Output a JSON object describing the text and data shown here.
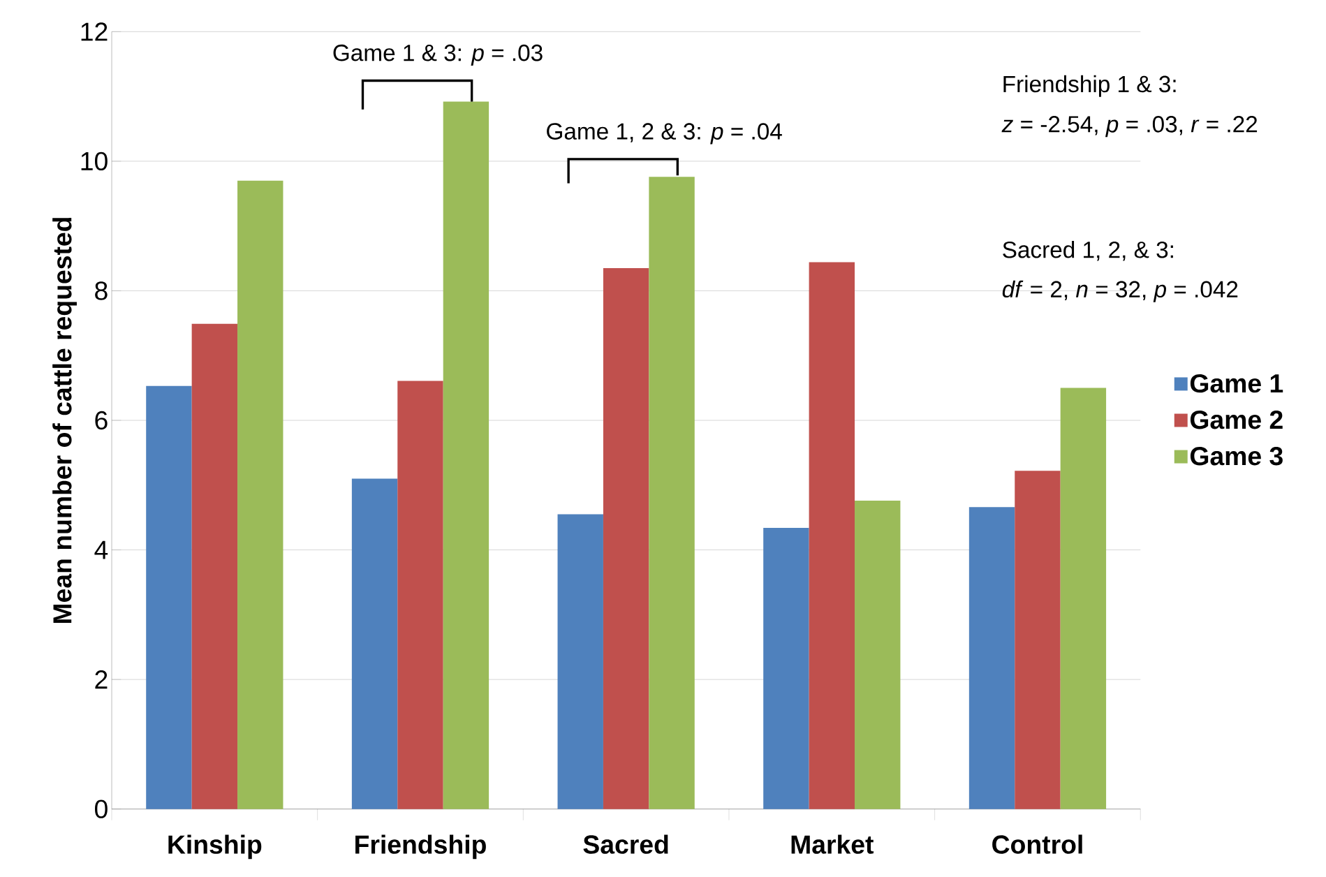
{
  "chart_data": {
    "type": "bar",
    "ylabel": "Mean number of cattle requested",
    "categories": [
      "Kinship",
      "Friendship",
      "Sacred",
      "Market",
      "Control"
    ],
    "series": [
      {
        "name": "Game 1",
        "color": "#4f81bd",
        "values": [
          6.53,
          5.1,
          4.55,
          4.34,
          4.66
        ]
      },
      {
        "name": "Game 2",
        "color": "#c0504d",
        "values": [
          7.49,
          6.61,
          8.35,
          8.44,
          5.22
        ]
      },
      {
        "name": "Game 3",
        "color": "#9bbb59",
        "values": [
          9.7,
          10.92,
          9.76,
          4.76,
          6.5
        ]
      }
    ],
    "ylim": [
      0,
      12
    ],
    "yticks": [
      0,
      2,
      4,
      6,
      8,
      10,
      12
    ],
    "grid": "y",
    "legend": "right",
    "annotations": [
      "Game 1 & 3: *p* = .03",
      "Game 1, 2 & 3: *p* = .04",
      "Friendship 1 & 3:",
      "*z* = -2.54, *p* = .03, *r* = .22",
      "Sacred 1, 2, & 3:",
      "*df* = 2, *n*  = 32, *p* = .042"
    ]
  }
}
